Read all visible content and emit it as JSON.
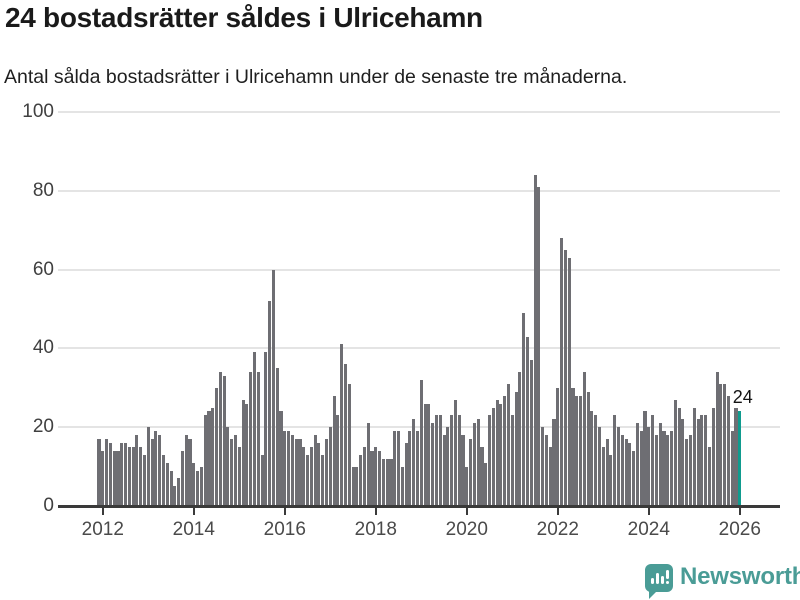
{
  "header": {
    "title": "24 bostadsrätter såldes i Ulricehamn",
    "subtitle": "Antal sålda bostadsrätter i Ulricehamn under de senaste tre månaderna."
  },
  "chart_data": {
    "type": "bar",
    "title": "24 bostadsrätter såldes i Ulricehamn",
    "subtitle": "Antal sålda bostadsrätter i Ulricehamn under de senaste tre månaderna.",
    "frequency": "monthly",
    "x_start": "2011-12",
    "x_end": "2026-01",
    "values": [
      17,
      14,
      17,
      16,
      14,
      14,
      16,
      16,
      15,
      15,
      18,
      15,
      13,
      20,
      17,
      19,
      18,
      13,
      11,
      9,
      5,
      7,
      14,
      18,
      17,
      11,
      9,
      10,
      23,
      24,
      25,
      30,
      34,
      33,
      20,
      17,
      18,
      15,
      27,
      26,
      34,
      39,
      34,
      13,
      39,
      52,
      60,
      35,
      24,
      19,
      19,
      18,
      17,
      17,
      15,
      13,
      15,
      18,
      16,
      13,
      17,
      20,
      28,
      23,
      41,
      36,
      31,
      10,
      10,
      13,
      15,
      21,
      14,
      15,
      14,
      12,
      12,
      12,
      19,
      19,
      10,
      16,
      19,
      22,
      19,
      32,
      26,
      26,
      21,
      23,
      23,
      18,
      20,
      23,
      27,
      23,
      18,
      10,
      17,
      21,
      22,
      15,
      11,
      23,
      25,
      27,
      26,
      28,
      31,
      23,
      29,
      34,
      49,
      43,
      37,
      84,
      81,
      20,
      18,
      15,
      22,
      30,
      68,
      65,
      63,
      30,
      28,
      28,
      34,
      29,
      24,
      23,
      20,
      15,
      17,
      13,
      23,
      20,
      18,
      17,
      16,
      14,
      21,
      19,
      24,
      20,
      23,
      18,
      21,
      19,
      18,
      19,
      27,
      25,
      22,
      17,
      18,
      25,
      22,
      23,
      23,
      15,
      25,
      34,
      31,
      31,
      28,
      19,
      25,
      24
    ],
    "highlight": {
      "index": 169,
      "value": 24,
      "label": "24",
      "color": "#0f9b8e"
    },
    "bar_color": "#6e6e73",
    "x_tick_labels": [
      "2012",
      "2014",
      "2016",
      "2018",
      "2020",
      "2022",
      "2024",
      "2026"
    ],
    "y_ticks": [
      0,
      20,
      40,
      60,
      80,
      100
    ],
    "ylim": [
      0,
      100
    ],
    "grid": true,
    "legend": "none",
    "grid_color": "#e4e4e4",
    "axis_color": "#3a3a3a"
  },
  "footer": {
    "brand": "Newsworthy",
    "brand_color": "#4a9c96"
  }
}
